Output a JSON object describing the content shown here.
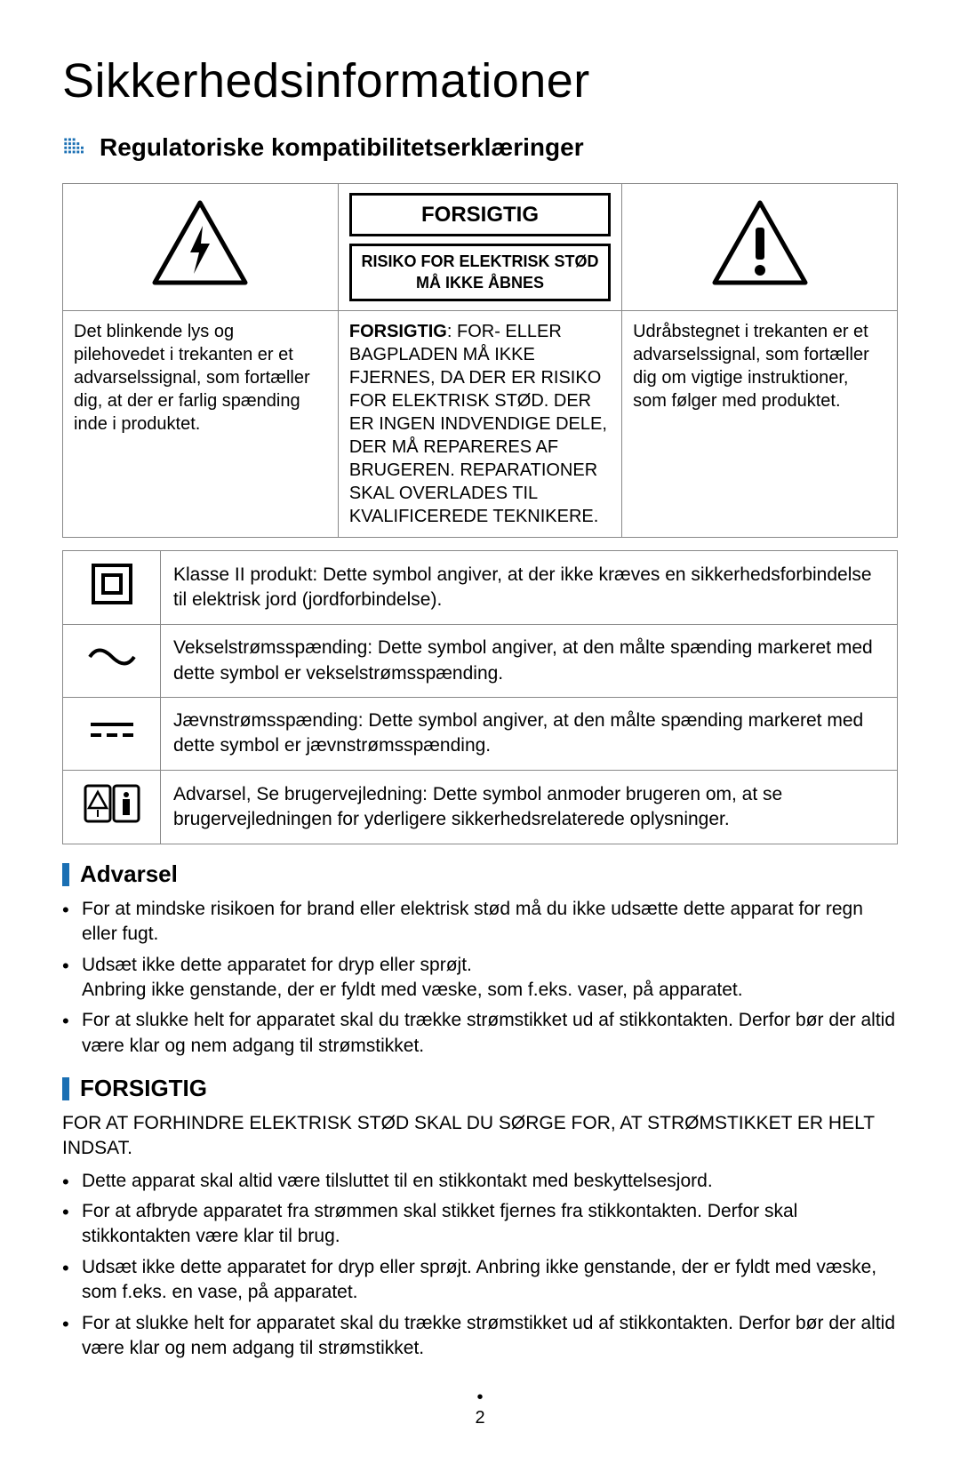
{
  "title": "Sikkerhedsinformationer",
  "section1": {
    "heading": "Regulatoriske kompatibilitetserklæringer",
    "caution_label": "FORSIGTIG",
    "risk_line1": "RISIKO FOR ELEKTRISK STØD",
    "risk_line2": "MÅ IKKE ÅBNES",
    "col1_text": "Det blinkende lys og pilehovedet i trekanten er et advarselssignal, som fortæller dig, at der er farlig spænding inde i produktet.",
    "col2_bold": "FORSIGTIG",
    "col2_text": ": FOR- ELLER BAGPLADEN MÅ IKKE FJERNES, DA DER ER RISIKO FOR ELEKTRISK STØD. DER ER INGEN INDVENDIGE DELE, DER MÅ REPARERES AF BRUGEREN. REPARATIONER SKAL OVERLADES TIL KVALIFICEREDE TEKNIKERE.",
    "col3_text": "Udråbstegnet i trekanten er et advarselssignal, som fortæller dig om vigtige instruktioner, som følger med produktet."
  },
  "symbols": {
    "class2": "Klasse II produkt: Dette symbol angiver, at der ikke kræves en sikkerhedsforbindelse til elektrisk jord (jordforbindelse).",
    "ac": "Vekselstrømsspænding: Dette symbol angiver, at den målte spænding markeret med dette symbol er vekselstrømsspænding.",
    "dc": "Jævnstrømsspænding: Dette symbol angiver, at den målte spænding markeret med dette symbol er jævnstrømsspænding.",
    "manual": "Advarsel, Se brugervejledning: Dette symbol anmoder brugeren om, at se brugervejledningen for yderligere sikkerhedsrelaterede oplysninger."
  },
  "warning": {
    "heading": "Advarsel",
    "items": [
      "For at mindske risikoen for brand eller elektrisk stød må du ikke udsætte dette apparat for regn eller fugt.",
      "Udsæt ikke dette apparatet for dryp eller sprøjt.\nAnbring ikke genstande, der er fyldt med væske, som f.eks. vaser, på apparatet.",
      "For at slukke helt for apparatet skal du trække strømstikket ud af stikkontakten. Derfor bør der altid være klar og nem adgang til strømstikket."
    ]
  },
  "caution": {
    "heading": "FORSIGTIG",
    "lead": "FOR AT FORHINDRE ELEKTRISK STØD SKAL DU SØRGE FOR, AT STRØMSTIKKET ER HELT INDSAT.",
    "items": [
      "Dette apparat skal altid være tilsluttet til en stikkontakt med beskyttelsesjord.",
      "For at afbryde apparatet fra strømmen skal stikket fjernes fra stikkontakten. Derfor skal stikkontakten være klar til brug.",
      "Udsæt ikke dette apparatet for dryp eller sprøjt. Anbring ikke genstande, der er fyldt med væske, som f.eks. en vase, på apparatet.",
      "For at slukke helt for apparatet skal du trække strømstikket ud af stikkontakten. Derfor bør der altid være klar og nem adgang til strømstikket."
    ]
  },
  "page_number": "2",
  "colors": {
    "accent": "#1a6fb3",
    "border": "#888888",
    "text": "#000000",
    "bg": "#ffffff"
  },
  "fonts": {
    "title_size": 54,
    "heading_size": 28,
    "body_size": 21
  }
}
